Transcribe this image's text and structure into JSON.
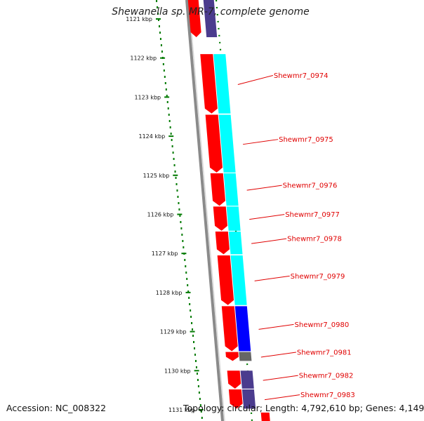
{
  "title": "Shewanella sp. MR-7, complete genome",
  "footer": {
    "accession": "Accession: NC_008322",
    "topology": "Topology: circular; Length: 4,792,610 bp; Genes: 4,149"
  },
  "colors": {
    "background": "#ffffff",
    "backbone": "#8a8a8a",
    "cds": "#ff0000",
    "cog_cyan": "#00ffff",
    "cog_blue": "#0000ff",
    "cog_slate": "#4b3c8e",
    "cog_gray": "#666666",
    "tick": "#007a00",
    "label": "#e00000"
  },
  "scale": {
    "unit": "kbp",
    "ticks": [
      {
        "label": "1121 kbp",
        "value": 1121
      },
      {
        "label": "1122 kbp",
        "value": 1122
      },
      {
        "label": "1123 kbp",
        "value": 1123
      },
      {
        "label": "1124 kbp",
        "value": 1124
      },
      {
        "label": "1125 kbp",
        "value": 1125
      },
      {
        "label": "1126 kbp",
        "value": 1126
      },
      {
        "label": "1127 kbp",
        "value": 1127
      },
      {
        "label": "1128 kbp",
        "value": 1128
      },
      {
        "label": "1129 kbp",
        "value": 1129
      },
      {
        "label": "1130 kbp",
        "value": 1130
      },
      {
        "label": "1131 kbp",
        "value": 1131
      }
    ]
  },
  "genes": [
    {
      "label": "Shewmr7_0974",
      "start": 1121.9,
      "end": 1123.42,
      "cog": "cog_cyan"
    },
    {
      "label": "Shewmr7_0975",
      "start": 1123.45,
      "end": 1124.93,
      "cog": "cog_cyan"
    },
    {
      "label": "Shewmr7_0976",
      "start": 1124.95,
      "end": 1125.78,
      "cog": "cog_cyan"
    },
    {
      "label": "Shewmr7_0977",
      "start": 1125.8,
      "end": 1126.42,
      "cog": "cog_cyan"
    },
    {
      "label": "Shewmr7_0978",
      "start": 1126.44,
      "end": 1127.02,
      "cog": "cog_cyan"
    },
    {
      "label": "Shewmr7_0979",
      "start": 1127.05,
      "end": 1128.32,
      "cog": "cog_cyan"
    },
    {
      "label": "Shewmr7_0980",
      "start": 1128.35,
      "end": 1129.5,
      "cog": "cog_blue"
    },
    {
      "label": "Shewmr7_0981",
      "start": 1129.52,
      "end": 1129.75,
      "cog": "cog_gray"
    },
    {
      "label": "Shewmr7_0982",
      "start": 1130.0,
      "end": 1130.46,
      "cog": "cog_slate"
    },
    {
      "label": "Shewmr7_0983",
      "start": 1130.48,
      "end": 1130.97,
      "cog": "cog_slate"
    }
  ]
}
